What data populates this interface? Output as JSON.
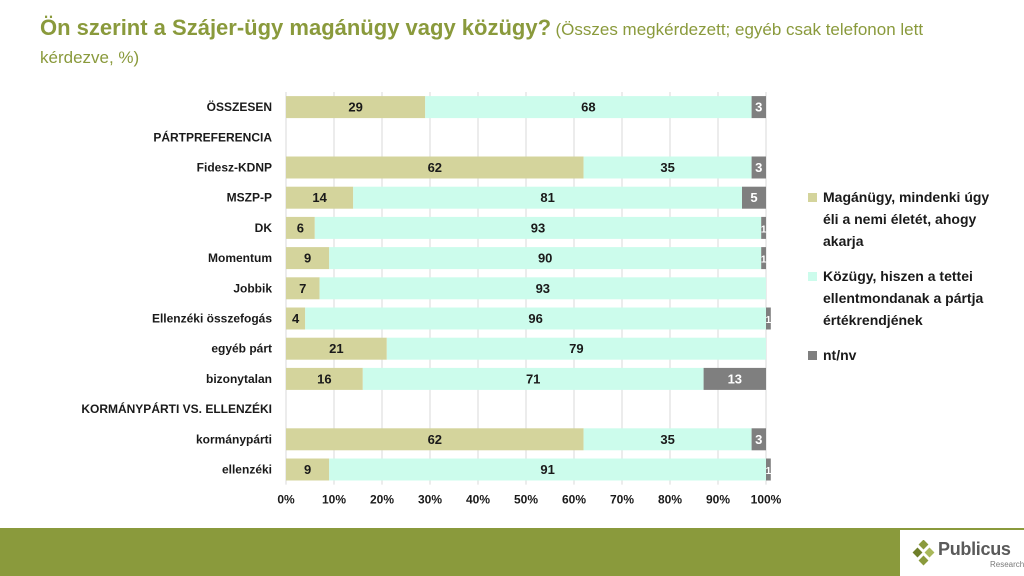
{
  "title": {
    "main": "Ön szerint a Szájer-ügy magánügy vagy közügy?",
    "sub": "(Összes megkérdezett; egyéb csak telefonon lett kérdezve, %)"
  },
  "legend": [
    {
      "label": "Magánügy, mindenki úgy éli a nemi életét, ahogy akarja",
      "color": "#d4d49c"
    },
    {
      "label": "Közügy, hiszen a tettei ellentmondanak a pártja értékrendjének",
      "color": "#ccfcec"
    },
    {
      "label": "nt/nv",
      "color": "#7f7f7f"
    }
  ],
  "logo": {
    "name": "Publicus",
    "sub": "Research"
  },
  "chart_data": {
    "type": "bar",
    "orientation": "horizontal",
    "stacked": true,
    "xlim": [
      0,
      100
    ],
    "xticks": [
      "0%",
      "10%",
      "20%",
      "30%",
      "40%",
      "50%",
      "60%",
      "70%",
      "80%",
      "90%",
      "100%"
    ],
    "categories": [
      "ÖSSZESEN",
      "PÁRTPREFERENCIA",
      "Fidesz-KDNP",
      "MSZP-P",
      "DK",
      "Momentum",
      "Jobbik",
      "Ellenzéki összefogás",
      "egyéb párt",
      "bizonytalan",
      "KORMÁNYPÁRTI VS. ELLENZÉKI",
      "kormánypárti",
      "ellenzéki"
    ],
    "series": [
      {
        "name": "Magánügy, mindenki úgy éli a nemi életét, ahogy akarja",
        "color": "#d4d49c",
        "values": [
          29,
          null,
          62,
          14,
          6,
          9,
          7,
          4,
          21,
          16,
          null,
          62,
          9
        ]
      },
      {
        "name": "Közügy, hiszen a tettei ellentmondanak a pártja értékrendjének",
        "color": "#ccfcec",
        "values": [
          68,
          null,
          35,
          81,
          93,
          90,
          93,
          96,
          79,
          71,
          null,
          35,
          91
        ]
      },
      {
        "name": "nt/nv",
        "color": "#7f7f7f",
        "values": [
          3,
          null,
          3,
          5,
          1,
          1,
          null,
          1,
          null,
          13,
          null,
          3,
          1
        ]
      }
    ],
    "grid": true,
    "legend_position": "right"
  }
}
